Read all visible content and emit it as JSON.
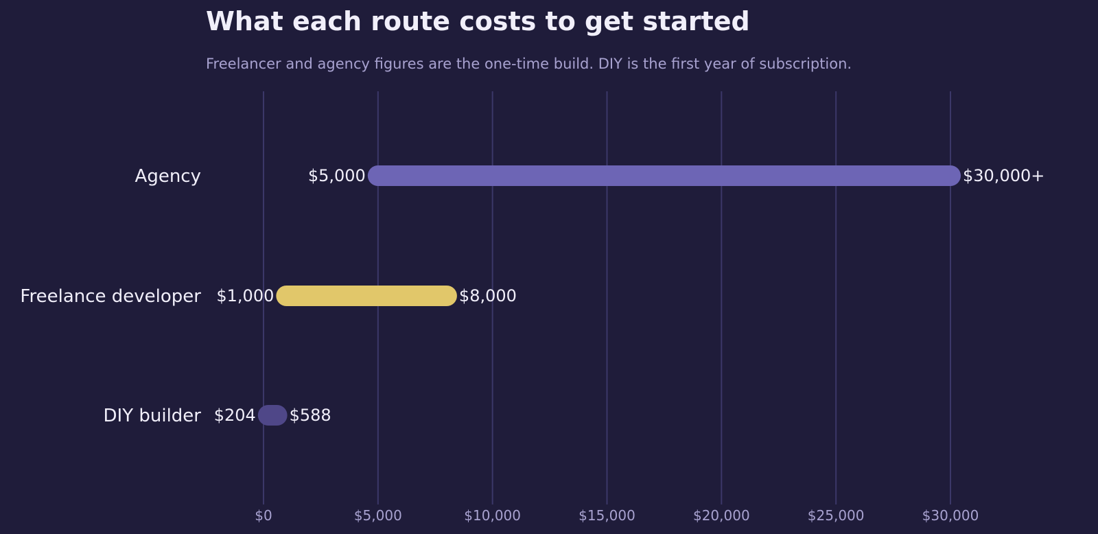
{
  "chart_data": {
    "type": "bar",
    "title": "What each route costs to get started",
    "subtitle": "Freelancer and agency figures are the one-time build. DIY is the first year of subscription.",
    "xlim": [
      0,
      30000
    ],
    "grid": true,
    "ticks": [
      {
        "value": 0,
        "label": "$0"
      },
      {
        "value": 5000,
        "label": "$5,000"
      },
      {
        "value": 10000,
        "label": "$10,000"
      },
      {
        "value": 15000,
        "label": "$15,000"
      },
      {
        "value": 20000,
        "label": "$20,000"
      },
      {
        "value": 25000,
        "label": "$25,000"
      },
      {
        "value": 30000,
        "label": "$30,000"
      }
    ],
    "ranges": [
      {
        "category": "Agency",
        "low": 5000,
        "high": 30000,
        "low_label": "$5,000",
        "high_label": "$30,000+",
        "color": "#6d65b5"
      },
      {
        "category": "Freelance developer",
        "low": 1000,
        "high": 8000,
        "low_label": "$1,000",
        "high_label": "$8,000",
        "color": "#e1c76a"
      },
      {
        "category": "DIY builder",
        "low": 204,
        "high": 588,
        "low_label": "$204",
        "high_label": "$588",
        "color": "#4f4788"
      }
    ]
  }
}
